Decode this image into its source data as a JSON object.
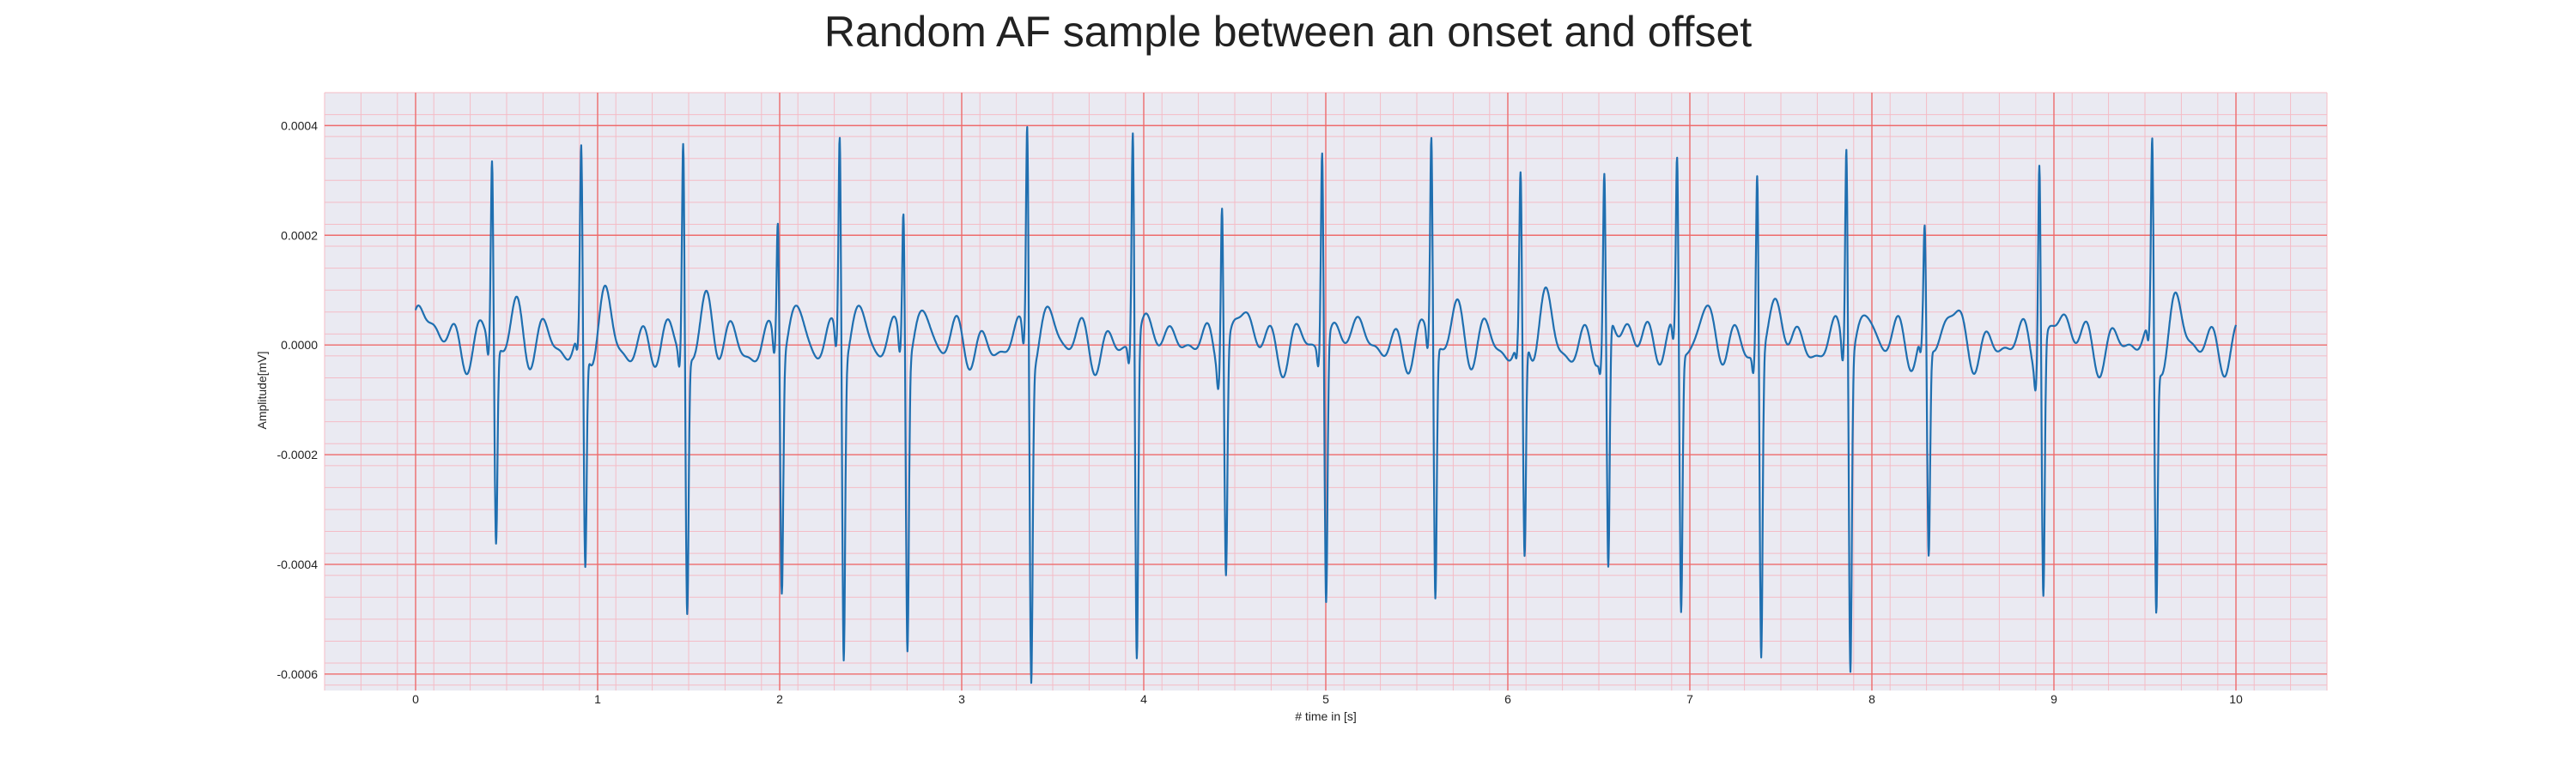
{
  "chart_data": {
    "type": "line",
    "title": "Random AF sample between an onset and offset",
    "xlabel": "# time in [s]",
    "ylabel": "Amplitude[mV]",
    "xlim": [
      -0.5,
      10.5
    ],
    "ylim": [
      -0.00063,
      0.00046
    ],
    "x_ticks": [
      0,
      1,
      2,
      3,
      4,
      5,
      6,
      7,
      8,
      9,
      10
    ],
    "x_tick_labels": [
      "0",
      "1",
      "2",
      "3",
      "4",
      "5",
      "6",
      "7",
      "8",
      "9",
      "10"
    ],
    "y_ticks": [
      0.0004,
      0.0002,
      0.0,
      -0.0002,
      -0.0004,
      -0.0006
    ],
    "y_tick_labels": [
      "0.0004",
      "0.0002",
      "0.0000",
      "-0.0002",
      "-0.0004",
      "-0.0006"
    ],
    "grid": {
      "major": true,
      "minor": true,
      "major_color": "#ee6b6b",
      "minor_color": "#f4bcc6"
    },
    "background_color": "#eaeaf2",
    "line_color": "#1f6fb0",
    "legend": "none",
    "series": [
      {
        "peaks_x": [
          0.42,
          0.91,
          1.47,
          1.99,
          2.33,
          2.68,
          3.36,
          3.94,
          4.43,
          4.98,
          5.58,
          6.07,
          6.53,
          6.93,
          7.37,
          7.86,
          8.29,
          8.92,
          9.54
        ],
        "peaks_r": [
          0.00034,
          0.00034,
          0.00039,
          0.00025,
          0.0004,
          0.00027,
          0.00042,
          0.0004,
          0.00031,
          0.00037,
          0.00038,
          0.00029,
          0.0003,
          0.00033,
          0.00034,
          0.0004,
          0.0002,
          0.00038,
          0.00036
        ],
        "peaks_s": [
          -0.00036,
          -0.00041,
          -0.00047,
          -0.00042,
          -0.00054,
          -0.00052,
          -0.00057,
          -0.00058,
          -0.0004,
          -0.00047,
          -0.00046,
          -0.00041,
          -0.00045,
          -0.00048,
          -0.00055,
          -0.00056,
          -0.00039,
          -0.00045,
          -0.00047
        ]
      }
    ]
  }
}
